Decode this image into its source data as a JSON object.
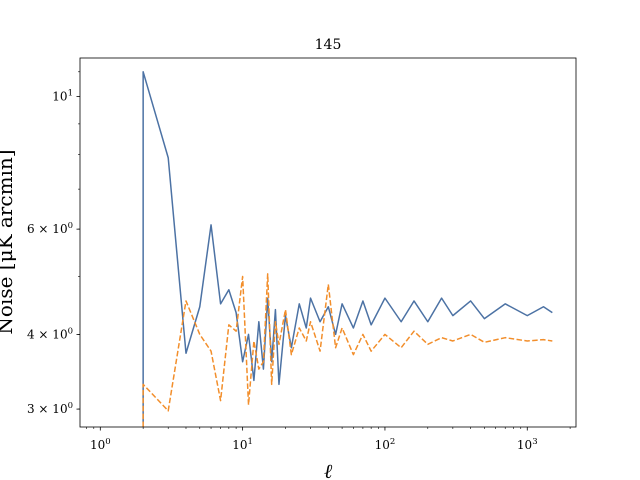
{
  "chart_data": {
    "type": "line",
    "title": "145",
    "xlabel": "ℓ",
    "ylabel": "Noise [μK arcmin]",
    "xscale": "log",
    "yscale": "log",
    "xlim": [
      0.72,
      2200
    ],
    "ylim": [
      2.8,
      11.6
    ],
    "grid": false,
    "legend": "none",
    "x_ticks": [
      {
        "value": 1,
        "base": "10",
        "exp": "0"
      },
      {
        "value": 10,
        "base": "10",
        "exp": "1"
      },
      {
        "value": 100,
        "base": "10",
        "exp": "2"
      },
      {
        "value": 1000,
        "base": "10",
        "exp": "3"
      }
    ],
    "y_ticks": [
      {
        "value": 3,
        "mant": "3 × ",
        "base": "10",
        "exp": "0"
      },
      {
        "value": 4,
        "mant": "4 × ",
        "base": "10",
        "exp": "0"
      },
      {
        "value": 6,
        "mant": "6 × ",
        "base": "10",
        "exp": "0"
      },
      {
        "value": 10,
        "mant": "",
        "base": "10",
        "exp": "1"
      }
    ],
    "series": [
      {
        "color": "#4c72a4",
        "dash": "solid",
        "x": [
          2,
          2,
          3,
          4,
          5,
          6,
          7,
          8,
          9,
          10,
          11,
          12,
          13,
          14,
          15,
          16,
          17,
          18,
          20,
          22,
          25,
          28,
          30,
          35,
          40,
          45,
          50,
          60,
          70,
          80,
          100,
          130,
          160,
          200,
          250,
          300,
          400,
          500,
          700,
          1000,
          1300,
          1500
        ],
        "y": [
          2.85,
          11.0,
          7.9,
          3.72,
          4.45,
          6.1,
          4.5,
          4.75,
          4.35,
          3.6,
          4.0,
          3.35,
          4.2,
          3.5,
          4.6,
          3.6,
          4.4,
          3.3,
          4.3,
          3.8,
          4.5,
          4.1,
          4.6,
          4.2,
          4.45,
          4.0,
          4.5,
          4.1,
          4.55,
          4.15,
          4.6,
          4.2,
          4.55,
          4.2,
          4.6,
          4.3,
          4.55,
          4.25,
          4.5,
          4.3,
          4.45,
          4.35
        ]
      },
      {
        "color": "#f28e2b",
        "dash": "dashed",
        "x": [
          2,
          2,
          3,
          4,
          5,
          6,
          7,
          8,
          9,
          10,
          11,
          12,
          13,
          14,
          15,
          16,
          17,
          18,
          20,
          22,
          25,
          28,
          30,
          35,
          40,
          45,
          50,
          60,
          70,
          80,
          100,
          130,
          160,
          200,
          250,
          300,
          400,
          500,
          700,
          1000,
          1300,
          1500
        ],
        "y": [
          2.8,
          3.3,
          2.98,
          4.55,
          4.0,
          3.75,
          3.1,
          4.15,
          4.05,
          5.0,
          3.05,
          3.9,
          3.5,
          3.6,
          5.05,
          3.3,
          4.2,
          3.85,
          4.4,
          3.7,
          4.1,
          3.9,
          4.2,
          3.75,
          4.85,
          3.8,
          4.1,
          3.7,
          4.0,
          3.75,
          4.0,
          3.8,
          4.05,
          3.85,
          3.95,
          3.9,
          4.0,
          3.88,
          3.95,
          3.9,
          3.92,
          3.9
        ]
      }
    ]
  }
}
